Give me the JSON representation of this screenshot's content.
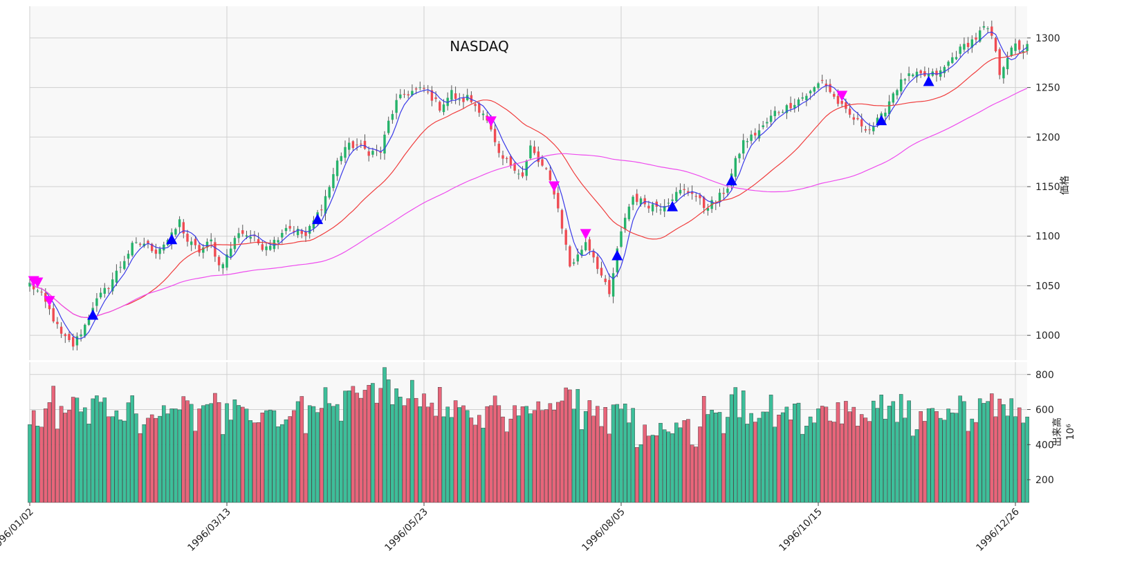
{
  "chart_data": {
    "type": "candlestick",
    "title": "NASDAQ",
    "x_tick_labels": [
      "1996/01/02",
      "1996/03/13",
      "1996/05/23",
      "1996/08/05",
      "1996/10/15",
      "1996/12/26"
    ],
    "x_tick_index": [
      0,
      50,
      100,
      150,
      200,
      250
    ],
    "n_bars": 254,
    "price_axis": {
      "label": "価格",
      "ticks": [
        1000,
        1050,
        1100,
        1150,
        1200,
        1250,
        1300
      ],
      "range": [
        975,
        1332
      ]
    },
    "volume_axis": {
      "label": "出来高",
      "scale_label": "10⁶",
      "ticks": [
        200,
        400,
        600,
        800
      ],
      "range": [
        70,
        870
      ]
    },
    "colors": {
      "up": "#26b36b",
      "down": "#ef4b52",
      "volume_up": "#3dbf9a",
      "volume_down": "#e8657a",
      "ma_short": "#3a3ae8",
      "ma_mid": "#f03c3c",
      "ma_long": "#ee4cee",
      "buy_marker": "#0000ff",
      "sell_marker": "#ff00ff",
      "panel_bg": "#f8f8f8",
      "grid": "#cfcfcf"
    },
    "close_keypoints": [
      [
        0,
        1052
      ],
      [
        3,
        1040
      ],
      [
        5,
        1025
      ],
      [
        8,
        1000
      ],
      [
        11,
        990
      ],
      [
        14,
        1010
      ],
      [
        16,
        1030
      ],
      [
        20,
        1050
      ],
      [
        23,
        1070
      ],
      [
        26,
        1090
      ],
      [
        29,
        1093
      ],
      [
        32,
        1085
      ],
      [
        36,
        1100
      ],
      [
        38,
        1115
      ],
      [
        40,
        1095
      ],
      [
        43,
        1085
      ],
      [
        46,
        1095
      ],
      [
        48,
        1070
      ],
      [
        50,
        1080
      ],
      [
        53,
        1105
      ],
      [
        56,
        1100
      ],
      [
        59,
        1090
      ],
      [
        62,
        1095
      ],
      [
        65,
        1110
      ],
      [
        68,
        1105
      ],
      [
        70,
        1100
      ],
      [
        72,
        1115
      ],
      [
        74,
        1130
      ],
      [
        76,
        1150
      ],
      [
        78,
        1175
      ],
      [
        80,
        1190
      ],
      [
        83,
        1192
      ],
      [
        86,
        1185
      ],
      [
        89,
        1185
      ],
      [
        91,
        1215
      ],
      [
        93,
        1235
      ],
      [
        95,
        1243
      ],
      [
        97,
        1246
      ],
      [
        100,
        1248
      ],
      [
        102,
        1240
      ],
      [
        104,
        1230
      ],
      [
        107,
        1245
      ],
      [
        109,
        1235
      ],
      [
        111,
        1240
      ],
      [
        113,
        1232
      ],
      [
        115,
        1225
      ],
      [
        117,
        1205
      ],
      [
        119,
        1180
      ],
      [
        121,
        1175
      ],
      [
        123,
        1170
      ],
      [
        125,
        1160
      ],
      [
        127,
        1190
      ],
      [
        129,
        1175
      ],
      [
        131,
        1165
      ],
      [
        133,
        1145
      ],
      [
        135,
        1110
      ],
      [
        137,
        1070
      ],
      [
        139,
        1080
      ],
      [
        141,
        1095
      ],
      [
        143,
        1080
      ],
      [
        145,
        1060
      ],
      [
        147,
        1040
      ],
      [
        149,
        1085
      ],
      [
        151,
        1120
      ],
      [
        153,
        1140
      ],
      [
        155,
        1135
      ],
      [
        157,
        1132
      ],
      [
        160,
        1130
      ],
      [
        163,
        1140
      ],
      [
        165,
        1145
      ],
      [
        168,
        1145
      ],
      [
        171,
        1130
      ],
      [
        174,
        1135
      ],
      [
        177,
        1150
      ],
      [
        179,
        1175
      ],
      [
        181,
        1195
      ],
      [
        183,
        1200
      ],
      [
        186,
        1210
      ],
      [
        189,
        1225
      ],
      [
        192,
        1230
      ],
      [
        195,
        1238
      ],
      [
        198,
        1245
      ],
      [
        201,
        1258
      ],
      [
        204,
        1240
      ],
      [
        207,
        1225
      ],
      [
        210,
        1215
      ],
      [
        213,
        1208
      ],
      [
        216,
        1220
      ],
      [
        219,
        1245
      ],
      [
        222,
        1260
      ],
      [
        225,
        1262
      ],
      [
        228,
        1262
      ],
      [
        231,
        1265
      ],
      [
        234,
        1280
      ],
      [
        237,
        1292
      ],
      [
        240,
        1300
      ],
      [
        242,
        1310
      ],
      [
        244,
        1302
      ],
      [
        246,
        1265
      ],
      [
        248,
        1282
      ],
      [
        250,
        1292
      ],
      [
        252,
        1288
      ],
      [
        253,
        1291
      ]
    ],
    "buy_signal_bars": [
      16,
      36,
      73,
      149,
      163,
      178,
      216,
      228
    ],
    "sell_signal_bars": [
      1,
      2,
      5,
      117,
      133,
      141,
      206
    ]
  }
}
